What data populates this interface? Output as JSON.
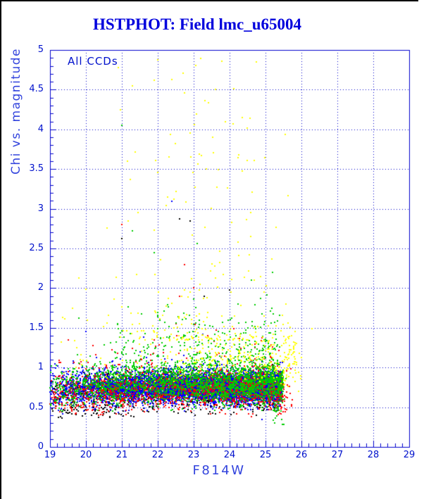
{
  "window": {
    "background": "#FFFFFF",
    "border_color": "#000000"
  },
  "chart_data": {
    "type": "scatter",
    "title": "HSTPHOT: Field lmc_u65004",
    "annotation": "All CCDs",
    "xlabel": "F814W",
    "ylabel": "Chi vs. magnitude",
    "xlim": [
      19,
      29
    ],
    "ylim": [
      0,
      5
    ],
    "x_tick_labels": [
      "19",
      "20",
      "21",
      "22",
      "23",
      "24",
      "25",
      "26",
      "27",
      "28",
      "29"
    ],
    "y_tick_labels": [
      "0",
      "0.5",
      "1",
      "1.5",
      "2",
      "2.5",
      "3",
      "3.5",
      "4",
      "4.5",
      "5"
    ],
    "x_major_step": 1,
    "x_minor_step": 0.2,
    "y_major_step": 0.5,
    "y_minor_step": 0.1,
    "grid": true,
    "grid_style": "dotted",
    "title_color": "#0000DD",
    "axis_color": "#0000CC",
    "grid_color": "#0000CC",
    "label_color": "#3344DD",
    "tick_label_color": "#0011CC",
    "point_size": 2,
    "seed": 987123,
    "series": [
      {
        "name": "ccd-black",
        "color": "#000000",
        "clusters": [
          {
            "count": 450,
            "x": {
              "type": "pow",
              "min": 19,
              "max": 25.3,
              "p": 0.75
            },
            "chi": {
              "type": "gauss",
              "mean": 0.68,
              "sd": 0.13,
              "min": 0.38,
              "max": 1.05
            }
          },
          {
            "count": 120,
            "x": {
              "type": "uniform",
              "min": 19,
              "max": 22
            },
            "chi": {
              "type": "gauss",
              "mean": 0.6,
              "sd": 0.12,
              "min": 0.35,
              "max": 0.95
            }
          },
          {
            "count": 25,
            "x": {
              "type": "uniform",
              "min": 19.2,
              "max": 21.6
            },
            "chi": {
              "type": "gauss",
              "mean": 0.43,
              "sd": 0.04,
              "min": 0.34,
              "max": 0.5
            }
          }
        ],
        "points": [
          [
            22.9,
            2.85
          ],
          [
            21.0,
            2.62
          ],
          [
            22.6,
            2.87
          ],
          [
            23.3,
            1.9
          ],
          [
            24.0,
            1.98
          ],
          [
            20.15,
            0.4
          ],
          [
            20.35,
            0.37
          ],
          [
            20.65,
            0.44
          ]
        ]
      },
      {
        "name": "ccd-blue",
        "color": "#0000FF",
        "clusters": [
          {
            "count": 6500,
            "x": {
              "type": "pow",
              "min": 19,
              "max": 25.45,
              "p": 0.45
            },
            "chi": {
              "type": "gauss",
              "mean": 0.75,
              "sd": 0.085,
              "min": 0.5,
              "max": 1.02
            }
          },
          {
            "count": 900,
            "x": {
              "type": "pow",
              "min": 19,
              "max": 25.5,
              "p": 0.8
            },
            "chi": {
              "type": "gauss",
              "mean": 0.78,
              "sd": 0.13,
              "min": 0.45,
              "max": 1.35
            }
          },
          {
            "count": 260,
            "x": {
              "type": "uniform",
              "min": 19,
              "max": 21.5
            },
            "chi": {
              "type": "gauss",
              "mean": 0.7,
              "sd": 0.12,
              "min": 0.45,
              "max": 1.0
            }
          }
        ],
        "points": [
          [
            20.0,
            1.45
          ],
          [
            21.5,
            1.2
          ],
          [
            21.6,
            1.38
          ],
          [
            23.25,
            1.42
          ],
          [
            22.4,
            3.09
          ],
          [
            19.35,
            0.42
          ],
          [
            20.9,
            0.43
          ],
          [
            24.9,
            0.35
          ]
        ]
      },
      {
        "name": "ccd-red",
        "color": "#FF0000",
        "clusters": [
          {
            "count": 1500,
            "x": {
              "type": "pow",
              "min": 19,
              "max": 25.45,
              "p": 0.6
            },
            "chi": {
              "type": "gauss",
              "mean": 0.72,
              "sd": 0.12,
              "min": 0.4,
              "max": 1.25
            }
          },
          {
            "count": 150,
            "x": {
              "type": "pow",
              "min": 19,
              "max": 25.4,
              "p": 0.7
            },
            "chi": {
              "type": "gauss",
              "mean": 0.95,
              "sd": 0.22,
              "min": 0.6,
              "max": 1.8
            }
          },
          {
            "count": 150,
            "x": {
              "type": "uniform",
              "min": 19,
              "max": 21
            },
            "chi": {
              "type": "gauss",
              "mean": 0.65,
              "sd": 0.12,
              "min": 0.4,
              "max": 1.0
            }
          },
          {
            "count": 70,
            "x": {
              "type": "gauss",
              "mean": 25.45,
              "sd": 0.15,
              "min": 25.15,
              "max": 25.95
            },
            "chi": {
              "type": "gauss",
              "mean": 0.7,
              "sd": 0.16,
              "min": 0.35,
              "max": 1.15
            }
          }
        ],
        "points": [
          [
            21.0,
            2.8
          ],
          [
            23.0,
            2.0
          ],
          [
            22.75,
            2.3
          ],
          [
            22.6,
            1.9
          ],
          [
            19.5,
            1.35
          ],
          [
            20.2,
            1.28
          ],
          [
            24.2,
            0.42
          ],
          [
            24.6,
            0.38
          ]
        ]
      },
      {
        "name": "ccd-green",
        "color": "#00CC00",
        "clusters": [
          {
            "count": 2200,
            "x": {
              "type": "pow",
              "min": 19,
              "max": 25.5,
              "p": 0.55
            },
            "chi": {
              "type": "gauss",
              "mean": 0.8,
              "sd": 0.13,
              "min": 0.45,
              "max": 1.3
            }
          },
          {
            "count": 350,
            "x": {
              "type": "pow",
              "min": 20.5,
              "max": 25.4,
              "p": 0.7
            },
            "chi": {
              "type": "gauss",
              "mean": 1.15,
              "sd": 0.3,
              "min": 0.9,
              "max": 2.3
            }
          },
          {
            "count": 150,
            "x": {
              "type": "uniform",
              "min": 19,
              "max": 21
            },
            "chi": {
              "type": "gauss",
              "mean": 0.7,
              "sd": 0.13,
              "min": 0.45,
              "max": 1.1
            }
          },
          {
            "count": 40,
            "x": {
              "type": "gauss",
              "mean": 25.35,
              "sd": 0.1,
              "min": 25.0,
              "max": 25.6
            },
            "chi": {
              "type": "gauss",
              "mean": 0.6,
              "sd": 0.18,
              "min": 0.25,
              "max": 1.05
            }
          }
        ],
        "points": [
          [
            21.3,
            2.72
          ],
          [
            21.0,
            4.05
          ],
          [
            19.8,
            1.62
          ],
          [
            24.6,
            2.1
          ],
          [
            25.2,
            2.2
          ],
          [
            21.9,
            2.45
          ],
          [
            23.1,
            2.56
          ],
          [
            25.5,
            0.28
          ]
        ]
      },
      {
        "name": "ccd-yellow",
        "color": "#FFFF00",
        "clusters": [
          {
            "count": 300,
            "x": {
              "type": "pow",
              "min": 21.3,
              "max": 25.9,
              "p": 0.6
            },
            "chi": {
              "type": "gauss",
              "mean": 1.08,
              "sd": 0.2,
              "min": 0.82,
              "max": 1.7
            }
          },
          {
            "count": 190,
            "x": {
              "type": "gauss",
              "mean": 23.2,
              "sd": 1.15,
              "min": 20.2,
              "max": 25.8
            },
            "chi": {
              "type": "pow",
              "min": 1.35,
              "max": 4.95,
              "p": 2.6
            }
          },
          {
            "count": 25,
            "x": {
              "type": "uniform",
              "min": 25.4,
              "max": 26.0
            },
            "chi": {
              "type": "gauss",
              "mean": 1.0,
              "sd": 0.22,
              "min": 0.7,
              "max": 1.55
            }
          },
          {
            "count": 30,
            "x": {
              "type": "uniform",
              "min": 19.3,
              "max": 21.3
            },
            "chi": {
              "type": "gauss",
              "mean": 1.3,
              "sd": 0.35,
              "min": 0.85,
              "max": 2.2
            }
          }
        ],
        "points": [
          [
            20.9,
            4.78
          ],
          [
            22.4,
            4.63
          ],
          [
            21.3,
            4.55
          ],
          [
            23.2,
            4.89
          ],
          [
            23.6,
            4.5
          ],
          [
            24.1,
            4.07
          ],
          [
            21.15,
            3.6
          ],
          [
            22.9,
            3.95
          ],
          [
            19.8,
            2.13
          ],
          [
            26.3,
            1.49
          ]
        ]
      }
    ]
  }
}
